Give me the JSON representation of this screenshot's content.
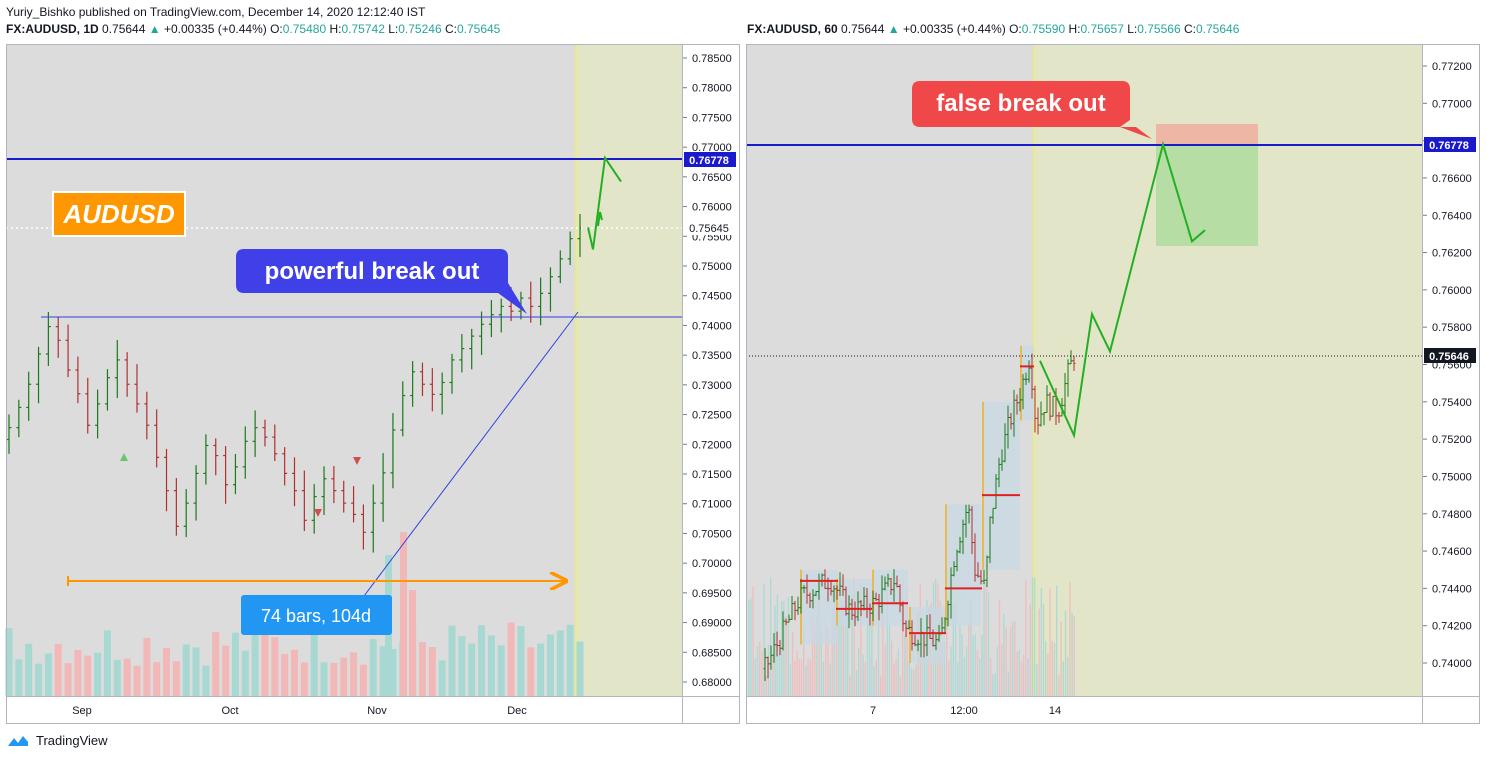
{
  "header": {
    "publisher": "Yuriy_Bishko published on TradingView.com, December 14, 2020 12:12:40 IST"
  },
  "footer": {
    "brand": "TradingView",
    "logo_icon": "tradingview-cloud-icon"
  },
  "left": {
    "symbol": "FX:AUDUSD, 1D",
    "price": "0.75644",
    "change_icon": "up-triangle-icon",
    "change": "+0.00335 (+0.44%)",
    "o_label": "O:",
    "o": "0.75480",
    "h_label": "H:",
    "h": "0.75742",
    "l_label": "L:",
    "l": "0.75246",
    "c_label": "C:",
    "c": "0.75645",
    "y_ticks": [
      "0.78500",
      "0.78000",
      "0.77500",
      "0.77000",
      "0.76500",
      "0.76000",
      "0.75500",
      "0.75000",
      "0.74500",
      "0.74000",
      "0.73500",
      "0.73000",
      "0.72500",
      "0.72000",
      "0.71500",
      "0.71000",
      "0.70500",
      "0.70000",
      "0.69500",
      "0.69000",
      "0.68500",
      "0.68000"
    ],
    "x_ticks": [
      "Sep",
      "Oct",
      "Nov",
      "Dec"
    ],
    "level_label": "0.76778",
    "price_label": "0.75645",
    "symbol_badge": "AUDUSD",
    "callout_break": "powerful break out",
    "callout_range": "74 bars, 104d"
  },
  "right": {
    "symbol": "FX:AUDUSD, 60",
    "price": "0.75644",
    "change_icon": "up-triangle-icon",
    "change": "+0.00335 (+0.44%)",
    "o_label": "O:",
    "o": "0.75590",
    "h_label": "H:",
    "h": "0.75657",
    "l_label": "L:",
    "l": "0.75566",
    "c_label": "C:",
    "c": "0.75646",
    "y_ticks": [
      "0.77200",
      "0.77000",
      "0.76800",
      "0.76600",
      "0.76400",
      "0.76200",
      "0.76000",
      "0.75800",
      "0.75600",
      "0.75400",
      "0.75200",
      "0.75000",
      "0.74800",
      "0.74600",
      "0.74400",
      "0.74200",
      "0.74000"
    ],
    "x_ticks": [
      "7",
      "12:00",
      "14"
    ],
    "level_label": "0.76778",
    "price_label": "0.75646",
    "callout_false": "false break out"
  },
  "chart_data": [
    {
      "type": "line",
      "title": "FX:AUDUSD, 1D",
      "ylim": [
        0.679,
        0.787
      ],
      "x_ticks": [
        "Sep",
        "Oct",
        "Nov",
        "Dec"
      ],
      "resistance_level": 0.76778,
      "breakout_level": 0.7416,
      "last_price": 0.75645,
      "close_series": [
        0.7228,
        0.7262,
        0.7301,
        0.7352,
        0.7398,
        0.7375,
        0.7325,
        0.7285,
        0.7232,
        0.7268,
        0.7312,
        0.7342,
        0.7301,
        0.7268,
        0.7232,
        0.7178,
        0.7122,
        0.7062,
        0.7101,
        0.7151,
        0.7198,
        0.7181,
        0.7132,
        0.7162,
        0.7205,
        0.7228,
        0.7212,
        0.7184,
        0.7151,
        0.7122,
        0.7072,
        0.7112,
        0.7142,
        0.7122,
        0.7101,
        0.7082,
        0.7052,
        0.7101,
        0.7152,
        0.7224,
        0.7282,
        0.7322,
        0.7301,
        0.7284,
        0.7304,
        0.7342,
        0.7361,
        0.7382,
        0.7402,
        0.7418,
        0.7432,
        0.7424,
        0.7446,
        0.7432,
        0.7454,
        0.7482,
        0.7512,
        0.7546,
        0.7564
      ],
      "projection": [
        [
          0,
          0.7565
        ],
        [
          1,
          0.7528
        ],
        [
          2,
          0.7682
        ],
        [
          3,
          0.7642
        ]
      ]
    },
    {
      "type": "line",
      "title": "FX:AUDUSD, 60",
      "ylim": [
        0.7387,
        0.7727
      ],
      "x_ticks": [
        "7",
        "12:00",
        "14"
      ],
      "resistance_level": 0.76778,
      "last_price": 0.75646,
      "projection": [
        [
          0,
          0.7562
        ],
        [
          1,
          0.7522
        ],
        [
          2,
          0.7587
        ],
        [
          3,
          0.7567
        ],
        [
          4,
          0.7678
        ],
        [
          5,
          0.7626
        ],
        [
          6,
          0.7632
        ]
      ],
      "short_position": {
        "entry": 0.76778,
        "stop": 0.7689,
        "target": 0.7625
      }
    }
  ]
}
